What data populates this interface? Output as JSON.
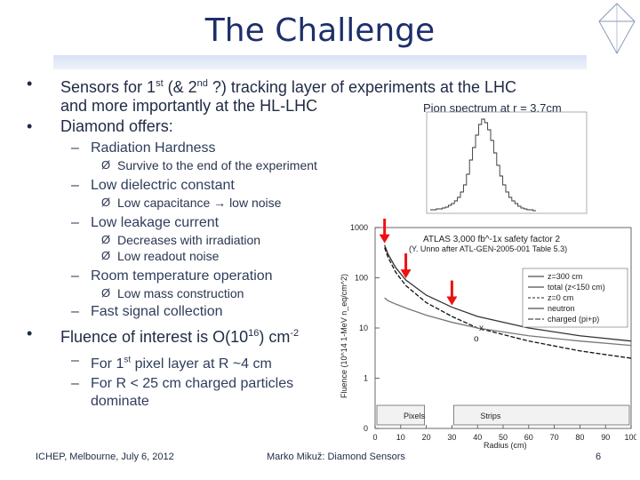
{
  "slide": {
    "title": "The Challenge",
    "bullets": {
      "b1_line1": "Sensors for 1st (& 2nd ?) tracking layer of experiments at the LHC",
      "b1_line2": "and more importantly at the HL-LHC",
      "b2": "Diamond offers:",
      "sub": [
        {
          "label": "Radiation Hardness",
          "items": [
            "Survive to the end of the experiment"
          ]
        },
        {
          "label": "Low dielectric constant",
          "items": [
            "Low capacitance → low noise"
          ]
        },
        {
          "label": "Low leakage current",
          "items": [
            "Decreases with irradiation",
            "Low readout noise"
          ]
        },
        {
          "label": "Room temperature operation",
          "items": [
            "Low mass construction"
          ]
        },
        {
          "label": "Fast signal collection",
          "items": []
        }
      ],
      "b3": "Fluence of interest is O(10^16) cm^-2",
      "b3_sub": [
        "For 1st pixel layer at R ~4 cm",
        "For R < 25 cm charged particles",
        "dominate"
      ]
    },
    "inset_label": "Pion spectrum at r = 3.7cm",
    "footer": {
      "left": "ICHEP, Melbourne, July 6, 2012",
      "middle": "Marko Mikuž: Diamond Sensors",
      "page": "6"
    },
    "bullet_glyph": "•",
    "dash_glyph": "–",
    "arrow_glyph": "Ø"
  },
  "chart_data": [
    {
      "type": "line",
      "title": "ATLAS 3,000 fb^-1x safety factor 2",
      "subtitle": "(Y. Unno after ATL-GEN-2005-001 Table 5.3)",
      "xlabel": "Radius (cm)",
      "ylabel": "Fluence (10^14 1-MeV n_eq/cm^2)",
      "x_ticks": [
        0,
        10,
        20,
        30,
        40,
        50,
        60,
        70,
        80,
        90,
        100
      ],
      "y_ticks": [
        "0",
        "1",
        "10",
        "100",
        "1000"
      ],
      "xlim": [
        0,
        100
      ],
      "y_scale": "log",
      "regions": [
        {
          "label": "Pixels",
          "x": [
            0,
            20
          ]
        },
        {
          "label": "Strips",
          "x": [
            30,
            100
          ]
        }
      ],
      "legend": [
        "z=300 cm",
        "total (z<150 cm)",
        "z=0 cm",
        "neutron",
        "charged (pi+p)"
      ],
      "series": [
        {
          "name": "total (z<150 cm)",
          "x": [
            3.7,
            5,
            8,
            12,
            20,
            30,
            40,
            60,
            80,
            100
          ],
          "y": [
            450,
            300,
            160,
            90,
            45,
            26,
            17,
            10,
            7,
            5.5
          ]
        },
        {
          "name": "charged (pi+p)",
          "x": [
            3.7,
            5,
            8,
            12,
            20,
            30,
            40,
            60,
            80,
            100
          ],
          "y": [
            400,
            260,
            130,
            70,
            32,
            17,
            10,
            5.5,
            3.5,
            2.5
          ]
        },
        {
          "name": "neutron",
          "x": [
            3.7,
            5,
            8,
            12,
            20,
            30,
            40,
            60,
            80,
            100
          ],
          "y": [
            40,
            35,
            30,
            25,
            18,
            13,
            10,
            7,
            5.5,
            4.5
          ]
        }
      ],
      "annotations": [
        "x",
        "o"
      ],
      "markers_x": [
        3.7,
        12,
        30
      ]
    }
  ]
}
